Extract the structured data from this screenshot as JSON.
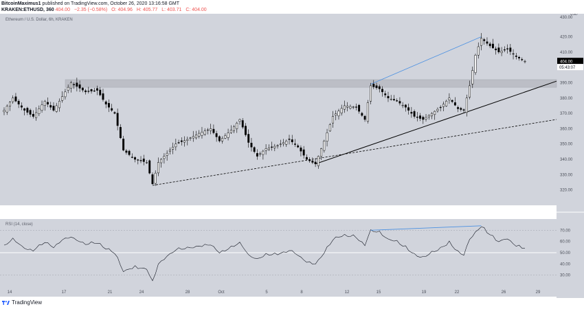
{
  "header": {
    "author": "BitcoinMaximus1",
    "published": "published on TradingView.com, October 26, 2020 13:16:58 GMT",
    "symbol": "KRAKEN:ETHUSD, 360",
    "last": "404.00",
    "change": "−2.35 (−0.58%)",
    "o": "O: 404.96",
    "h": "H: 405.77",
    "l": "L: 403.71",
    "c": "C: 404.00"
  },
  "footer": {
    "brand": "TradingView"
  },
  "colors": {
    "pane_bg": "#d1d4dc",
    "candle": "#000000",
    "channel": "#4a90e2",
    "trendline": "#000000",
    "zone": "#b7b9c1",
    "price_label_bg": "#000000"
  },
  "chart_data": [
    {
      "type": "candlestick",
      "title": "Ethereum / U.S. Dollar, 6h, KRAKEN",
      "yunit": "USD",
      "ylim": [
        310,
        435
      ],
      "yticks": [
        320,
        330,
        340,
        350,
        360,
        370,
        380,
        390,
        400,
        410,
        420
      ],
      "ytick_labels": [
        "320.00",
        "330.00",
        "340.00",
        "350.00",
        "360.00",
        "370.00",
        "380.00",
        "390.00",
        "400.00",
        "410.00",
        "420.00"
      ],
      "ytop_label": "430.00",
      "x_tick_labels": [
        "14",
        "17",
        "21",
        "24",
        "28",
        "Oct",
        "5",
        "8",
        "12",
        "15",
        "19",
        "22",
        "26",
        "29"
      ],
      "price_label": "404.00",
      "countdown_label": "05:43:07",
      "resistance_zone": [
        387,
        392
      ],
      "price_anchors": [
        {
          "i": 0,
          "p": 372
        },
        {
          "i": 3,
          "p": 380
        },
        {
          "i": 7,
          "p": 372
        },
        {
          "i": 10,
          "p": 368
        },
        {
          "i": 14,
          "p": 378
        },
        {
          "i": 17,
          "p": 372
        },
        {
          "i": 20,
          "p": 381
        },
        {
          "i": 23,
          "p": 390
        },
        {
          "i": 28,
          "p": 384
        },
        {
          "i": 32,
          "p": 385
        },
        {
          "i": 35,
          "p": 376
        },
        {
          "i": 38,
          "p": 370
        },
        {
          "i": 41,
          "p": 346
        },
        {
          "i": 45,
          "p": 340
        },
        {
          "i": 49,
          "p": 338
        },
        {
          "i": 51,
          "p": 324
        },
        {
          "i": 53,
          "p": 338
        },
        {
          "i": 56,
          "p": 344
        },
        {
          "i": 59,
          "p": 350
        },
        {
          "i": 63,
          "p": 353
        },
        {
          "i": 67,
          "p": 357
        },
        {
          "i": 71,
          "p": 360
        },
        {
          "i": 74,
          "p": 352
        },
        {
          "i": 78,
          "p": 359
        },
        {
          "i": 81,
          "p": 366
        },
        {
          "i": 84,
          "p": 351
        },
        {
          "i": 87,
          "p": 342
        },
        {
          "i": 90,
          "p": 347
        },
        {
          "i": 94,
          "p": 349
        },
        {
          "i": 98,
          "p": 353
        },
        {
          "i": 101,
          "p": 348
        },
        {
          "i": 104,
          "p": 340
        },
        {
          "i": 107,
          "p": 337
        },
        {
          "i": 110,
          "p": 352
        },
        {
          "i": 113,
          "p": 368
        },
        {
          "i": 117,
          "p": 375
        },
        {
          "i": 121,
          "p": 374
        },
        {
          "i": 124,
          "p": 366
        },
        {
          "i": 126,
          "p": 388
        },
        {
          "i": 129,
          "p": 386
        },
        {
          "i": 132,
          "p": 380
        },
        {
          "i": 135,
          "p": 378
        },
        {
          "i": 138,
          "p": 374
        },
        {
          "i": 141,
          "p": 368
        },
        {
          "i": 144,
          "p": 366
        },
        {
          "i": 147,
          "p": 370
        },
        {
          "i": 150,
          "p": 374
        },
        {
          "i": 153,
          "p": 380
        },
        {
          "i": 156,
          "p": 373
        },
        {
          "i": 158,
          "p": 372
        },
        {
          "i": 160,
          "p": 388
        },
        {
          "i": 162,
          "p": 408
        },
        {
          "i": 164,
          "p": 419
        },
        {
          "i": 167,
          "p": 414
        },
        {
          "i": 170,
          "p": 410
        },
        {
          "i": 173,
          "p": 412
        },
        {
          "i": 176,
          "p": 407
        },
        {
          "i": 179,
          "p": 404
        }
      ]
    },
    {
      "type": "line",
      "title": "RSI (14, close)",
      "ylim": [
        20,
        80
      ],
      "yticks": [
        30,
        40,
        50,
        60,
        70
      ],
      "ytick_labels": [
        "30.00",
        "40.00",
        "50.00",
        "60.00",
        "70.00"
      ],
      "rsi_anchors": [
        {
          "i": 0,
          "v": 56
        },
        {
          "i": 3,
          "v": 62
        },
        {
          "i": 7,
          "v": 54
        },
        {
          "i": 10,
          "v": 52
        },
        {
          "i": 14,
          "v": 60
        },
        {
          "i": 17,
          "v": 55
        },
        {
          "i": 20,
          "v": 62
        },
        {
          "i": 23,
          "v": 64
        },
        {
          "i": 28,
          "v": 58
        },
        {
          "i": 32,
          "v": 59
        },
        {
          "i": 35,
          "v": 54
        },
        {
          "i": 38,
          "v": 50
        },
        {
          "i": 41,
          "v": 34
        },
        {
          "i": 45,
          "v": 37
        },
        {
          "i": 49,
          "v": 36
        },
        {
          "i": 51,
          "v": 24
        },
        {
          "i": 53,
          "v": 40
        },
        {
          "i": 56,
          "v": 47
        },
        {
          "i": 59,
          "v": 53
        },
        {
          "i": 63,
          "v": 54
        },
        {
          "i": 67,
          "v": 56
        },
        {
          "i": 71,
          "v": 57
        },
        {
          "i": 74,
          "v": 50
        },
        {
          "i": 78,
          "v": 55
        },
        {
          "i": 81,
          "v": 59
        },
        {
          "i": 84,
          "v": 48
        },
        {
          "i": 87,
          "v": 44
        },
        {
          "i": 90,
          "v": 48
        },
        {
          "i": 94,
          "v": 49
        },
        {
          "i": 98,
          "v": 52
        },
        {
          "i": 101,
          "v": 48
        },
        {
          "i": 104,
          "v": 42
        },
        {
          "i": 107,
          "v": 40
        },
        {
          "i": 110,
          "v": 50
        },
        {
          "i": 113,
          "v": 62
        },
        {
          "i": 117,
          "v": 66
        },
        {
          "i": 121,
          "v": 64
        },
        {
          "i": 124,
          "v": 57
        },
        {
          "i": 126,
          "v": 70
        },
        {
          "i": 129,
          "v": 68
        },
        {
          "i": 132,
          "v": 62
        },
        {
          "i": 135,
          "v": 60
        },
        {
          "i": 138,
          "v": 55
        },
        {
          "i": 141,
          "v": 48
        },
        {
          "i": 144,
          "v": 46
        },
        {
          "i": 147,
          "v": 50
        },
        {
          "i": 150,
          "v": 54
        },
        {
          "i": 153,
          "v": 59
        },
        {
          "i": 156,
          "v": 51
        },
        {
          "i": 158,
          "v": 48
        },
        {
          "i": 160,
          "v": 62
        },
        {
          "i": 162,
          "v": 68
        },
        {
          "i": 164,
          "v": 74
        },
        {
          "i": 167,
          "v": 66
        },
        {
          "i": 170,
          "v": 60
        },
        {
          "i": 173,
          "v": 63
        },
        {
          "i": 176,
          "v": 56
        },
        {
          "i": 179,
          "v": 54
        }
      ]
    }
  ]
}
